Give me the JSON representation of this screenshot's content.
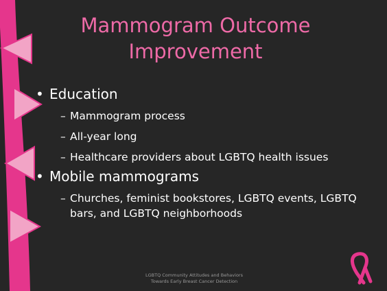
{
  "slide": {
    "title": "Mammogram Outcome Improvement",
    "bullets": [
      {
        "text": "Education",
        "sub": [
          "Mammogram process",
          "All-year long",
          "Healthcare providers about LGBTQ health issues"
        ]
      },
      {
        "text": "Mobile mammograms",
        "sub": [
          "Churches, feminist bookstores, LGBTQ events, LGBTQ bars, and LGBTQ neighborhoods"
        ]
      }
    ],
    "footer": [
      "LGBTQ Community Attitudes and Behaviors",
      "Towards Early Breast Cancer Detection"
    ]
  }
}
